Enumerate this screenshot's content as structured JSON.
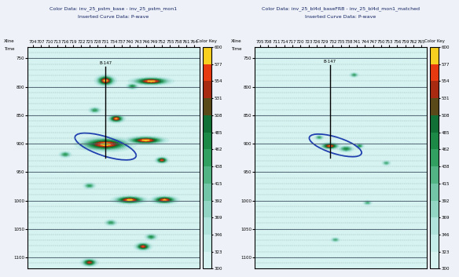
{
  "chart_data": [
    {
      "type": "heatmap",
      "title_lines": [
        "Color Data: inv_25_pstm_base - inv_25_pstm_mon1",
        "Inserted Curve Data: P-wave"
      ],
      "corner_labels": [
        "Xline",
        "Time"
      ],
      "xlim": [
        702,
        766
      ],
      "xticks": [
        704,
        707,
        710,
        713,
        716,
        719,
        722,
        725,
        728,
        731,
        734,
        737,
        740,
        743,
        746,
        749,
        752,
        755,
        758,
        761,
        764
      ],
      "ylim": [
        1120,
        730
      ],
      "yticks": [
        750,
        800,
        850,
        900,
        950,
        1000,
        1050,
        1100
      ],
      "well": {
        "label": "B-147",
        "x": 731,
        "top": 765,
        "bottom": 925
      },
      "highlight": {
        "x": 731,
        "y": 905,
        "width": 16,
        "height": 50
      },
      "anomalies": [
        {
          "x": 731,
          "y": 790,
          "width": 3,
          "height": 8,
          "value": 600
        },
        {
          "x": 748,
          "y": 791,
          "width": 6,
          "height": 6,
          "value": 600
        },
        {
          "x": 741,
          "y": 800,
          "width": 2,
          "height": 5,
          "value": 470
        },
        {
          "x": 735,
          "y": 857,
          "width": 2.5,
          "height": 6,
          "value": 590
        },
        {
          "x": 727,
          "y": 842,
          "width": 2,
          "height": 5,
          "value": 460
        },
        {
          "x": 731,
          "y": 902,
          "width": 8,
          "height": 10,
          "value": 600
        },
        {
          "x": 746,
          "y": 895,
          "width": 6,
          "height": 6,
          "value": 600
        },
        {
          "x": 752,
          "y": 930,
          "width": 2,
          "height": 5,
          "value": 570
        },
        {
          "x": 716,
          "y": 920,
          "width": 2,
          "height": 5,
          "value": 460
        },
        {
          "x": 740,
          "y": 1000,
          "width": 5,
          "height": 6,
          "value": 600
        },
        {
          "x": 753,
          "y": 1000,
          "width": 4,
          "height": 6,
          "value": 590
        },
        {
          "x": 725,
          "y": 975,
          "width": 2,
          "height": 5,
          "value": 460
        },
        {
          "x": 745,
          "y": 1082,
          "width": 2.5,
          "height": 6,
          "value": 570
        },
        {
          "x": 733,
          "y": 1040,
          "width": 2,
          "height": 5,
          "value": 460
        },
        {
          "x": 748,
          "y": 1065,
          "width": 2,
          "height": 5,
          "value": 470
        },
        {
          "x": 725,
          "y": 1110,
          "width": 2.5,
          "height": 6,
          "value": 560
        }
      ],
      "color_key": {
        "label": "Color Key",
        "range": [
          300,
          600
        ],
        "ticks": [
          300,
          323,
          346,
          369,
          392,
          415,
          438,
          462,
          485,
          508,
          531,
          554,
          577,
          600
        ]
      }
    },
    {
      "type": "heatmap",
      "title_lines": [
        "Color Data: inv_25_bl4d_baseFRB - inv_25_bl4d_mon1_matched",
        "Inserted Curve Data: P-wave"
      ],
      "corner_labels": [
        "Xline",
        "Time"
      ],
      "xlim": [
        703,
        767
      ],
      "xticks": [
        705,
        708,
        711,
        714,
        717,
        720,
        723,
        726,
        729,
        732,
        735,
        738,
        741,
        744,
        747,
        750,
        753,
        756,
        759,
        762,
        765
      ],
      "ylim": [
        1120,
        730
      ],
      "yticks": [
        750,
        800,
        850,
        900,
        950,
        1000,
        1050,
        1100
      ],
      "well": {
        "label": "B-147",
        "x": 731,
        "top": 762,
        "bottom": 925
      },
      "highlight": {
        "x": 733,
        "y": 903,
        "width": 14,
        "height": 42
      },
      "anomalies": [
        {
          "x": 731,
          "y": 905,
          "width": 3,
          "height": 5,
          "value": 585
        },
        {
          "x": 737,
          "y": 910,
          "width": 2.5,
          "height": 5,
          "value": 480
        },
        {
          "x": 742,
          "y": 905,
          "width": 1.5,
          "height": 4,
          "value": 470
        },
        {
          "x": 727,
          "y": 890,
          "width": 1.5,
          "height": 4,
          "value": 450
        },
        {
          "x": 740,
          "y": 780,
          "width": 1.5,
          "height": 4,
          "value": 450
        },
        {
          "x": 752,
          "y": 935,
          "width": 1.5,
          "height": 4,
          "value": 440
        },
        {
          "x": 745,
          "y": 1005,
          "width": 1.5,
          "height": 4,
          "value": 440
        },
        {
          "x": 733,
          "y": 1070,
          "width": 1.5,
          "height": 4,
          "value": 440
        }
      ],
      "color_key": {
        "label": "Color Key",
        "range": [
          300,
          600
        ],
        "ticks": [
          300,
          323,
          346,
          369,
          392,
          415,
          438,
          462,
          485,
          508,
          531,
          554,
          577,
          600
        ]
      }
    }
  ]
}
